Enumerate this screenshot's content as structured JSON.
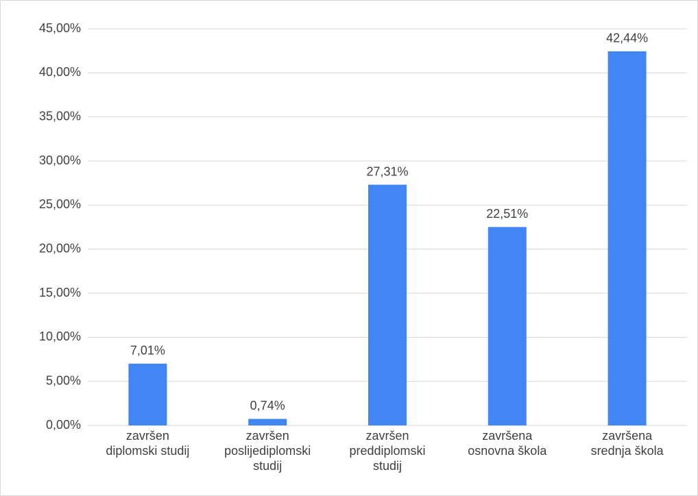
{
  "chart_data": {
    "type": "bar",
    "categories": [
      "završen\ndiplomski studij",
      "završen\nposlijediplomski\nstudij",
      "završen\npreddiplomski\nstudij",
      "završena\nosnovna škola",
      "završena\nsrednja škola"
    ],
    "values": [
      7.01,
      0.74,
      27.31,
      22.51,
      42.44
    ],
    "value_labels": [
      "7,01%",
      "0,74%",
      "27,31%",
      "22,51%",
      "42,44%"
    ],
    "color": "#4285f4",
    "ylim": [
      0,
      45
    ],
    "yticks": [
      {
        "value": 0,
        "label": "0,00%"
      },
      {
        "value": 5,
        "label": "5,00%"
      },
      {
        "value": 10,
        "label": "10,00%"
      },
      {
        "value": 15,
        "label": "15,00%"
      },
      {
        "value": 20,
        "label": "20,00%"
      },
      {
        "value": 25,
        "label": "25,00%"
      },
      {
        "value": 30,
        "label": "30,00%"
      },
      {
        "value": 35,
        "label": "35,00%"
      },
      {
        "value": 40,
        "label": "40,00%"
      },
      {
        "value": 45,
        "label": "45,00%"
      }
    ],
    "grid": true
  }
}
